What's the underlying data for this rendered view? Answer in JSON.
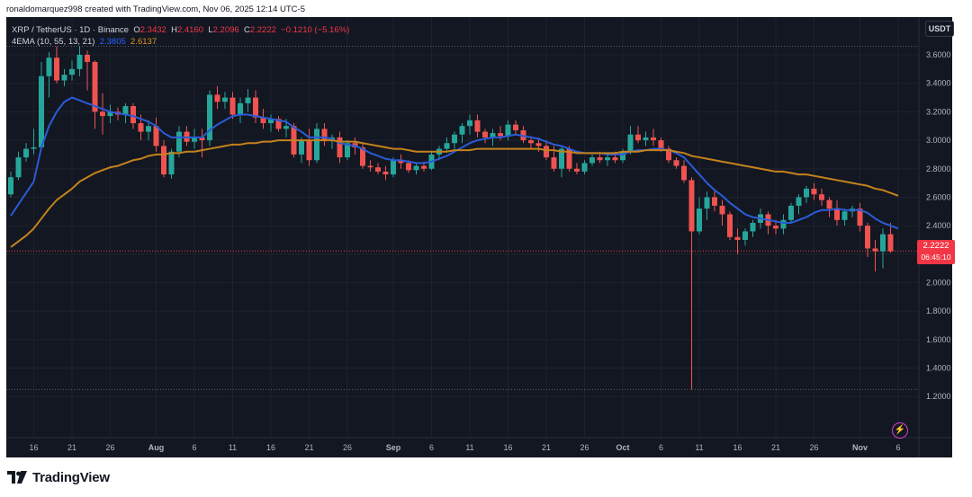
{
  "header": {
    "text": "ronaldomarquez998 created with TradingView.com, Nov 06, 2025 12:14 UTC-5"
  },
  "legend": {
    "symbol": "XRP / TetherUS · 1D · Binance",
    "open_label": "O",
    "open": "2.3432",
    "high_label": "H",
    "high": "2.4160",
    "low_label": "L",
    "low": "2.2096",
    "close_label": "C",
    "close": "2.2222",
    "change": "−0.1210 (−5.16%)",
    "ema_label": "4EMA (10, 55, 13, 21)",
    "ema_fast": "2.3805",
    "ema_slow": "2.6137"
  },
  "currency_label": "USDT",
  "price_tag": {
    "price": "2.2222",
    "countdown": "06:45:10"
  },
  "brand": {
    "name": "TradingView"
  },
  "colors": {
    "background": "#131722",
    "up": "#26a69a",
    "down": "#ef5350",
    "ema_fast": "#2a5bd7",
    "ema_slow": "#c5821c",
    "price_tag": "#f23645"
  },
  "chart_data": {
    "type": "candlestick",
    "symbol": "XRP / TetherUS",
    "interval": "1D",
    "exchange": "Binance",
    "y_ticks": [
      "3.6000",
      "3.4000",
      "3.2000",
      "3.0000",
      "2.8000",
      "2.6000",
      "2.4000",
      "2.2000",
      "2.0000",
      "1.8000",
      "1.6000",
      "1.4000",
      "1.2000"
    ],
    "ylim": [
      1.05,
      3.72
    ],
    "x_ticks": [
      {
        "label": "16",
        "i": 3
      },
      {
        "label": "21",
        "i": 8
      },
      {
        "label": "26",
        "i": 13
      },
      {
        "label": "Aug",
        "i": 19
      },
      {
        "label": "6",
        "i": 24
      },
      {
        "label": "11",
        "i": 29
      },
      {
        "label": "16",
        "i": 34
      },
      {
        "label": "21",
        "i": 39
      },
      {
        "label": "26",
        "i": 44
      },
      {
        "label": "Sep",
        "i": 50
      },
      {
        "label": "6",
        "i": 55
      },
      {
        "label": "11",
        "i": 60
      },
      {
        "label": "16",
        "i": 65
      },
      {
        "label": "21",
        "i": 70
      },
      {
        "label": "26",
        "i": 75
      },
      {
        "label": "Oct",
        "i": 80
      },
      {
        "label": "6",
        "i": 85
      },
      {
        "label": "11",
        "i": 90
      },
      {
        "label": "16",
        "i": 95
      },
      {
        "label": "21",
        "i": 100
      },
      {
        "label": "26",
        "i": 105
      },
      {
        "label": "Nov",
        "i": 111
      },
      {
        "label": "6",
        "i": 116
      }
    ],
    "reference_lines": [
      {
        "price": 3.66,
        "style": "dotted"
      },
      {
        "price": 1.25,
        "style": "dotted"
      },
      {
        "price": 2.2222,
        "style": "dotted-red"
      }
    ],
    "candles": [
      [
        2.62,
        2.78,
        2.6,
        2.74
      ],
      [
        2.74,
        2.92,
        2.72,
        2.88
      ],
      [
        2.88,
        2.98,
        2.85,
        2.94
      ],
      [
        2.94,
        3.08,
        2.9,
        2.95
      ],
      [
        2.95,
        3.55,
        2.93,
        3.45
      ],
      [
        3.45,
        3.62,
        3.3,
        3.58
      ],
      [
        3.58,
        3.66,
        3.4,
        3.42
      ],
      [
        3.42,
        3.5,
        3.38,
        3.46
      ],
      [
        3.46,
        3.56,
        3.42,
        3.5
      ],
      [
        3.5,
        3.66,
        3.45,
        3.6
      ],
      [
        3.6,
        3.63,
        3.35,
        3.55
      ],
      [
        3.55,
        3.56,
        3.08,
        3.2
      ],
      [
        3.2,
        3.33,
        3.04,
        3.17
      ],
      [
        3.17,
        3.25,
        3.12,
        3.2
      ],
      [
        3.2,
        3.23,
        3.14,
        3.18
      ],
      [
        3.18,
        3.26,
        3.12,
        3.24
      ],
      [
        3.24,
        3.26,
        3.08,
        3.12
      ],
      [
        3.12,
        3.18,
        3.0,
        3.06
      ],
      [
        3.06,
        3.14,
        3.0,
        3.1
      ],
      [
        3.1,
        3.16,
        2.92,
        2.96
      ],
      [
        2.96,
        3.0,
        2.74,
        2.76
      ],
      [
        2.76,
        2.94,
        2.73,
        2.92
      ],
      [
        2.92,
        3.1,
        2.88,
        3.06
      ],
      [
        3.06,
        3.1,
        2.96,
        2.99
      ],
      [
        2.99,
        3.08,
        2.94,
        3.02
      ],
      [
        3.02,
        3.08,
        2.88,
        3.0
      ],
      [
        3.0,
        3.35,
        2.96,
        3.32
      ],
      [
        3.32,
        3.38,
        3.22,
        3.27
      ],
      [
        3.27,
        3.34,
        3.22,
        3.3
      ],
      [
        3.3,
        3.34,
        3.15,
        3.18
      ],
      [
        3.18,
        3.3,
        3.12,
        3.26
      ],
      [
        3.26,
        3.36,
        3.2,
        3.3
      ],
      [
        3.3,
        3.35,
        3.12,
        3.16
      ],
      [
        3.16,
        3.22,
        3.08,
        3.12
      ],
      [
        3.12,
        3.18,
        3.06,
        3.15
      ],
      [
        3.15,
        3.17,
        3.06,
        3.08
      ],
      [
        3.08,
        3.15,
        3.02,
        3.1
      ],
      [
        3.1,
        3.12,
        2.88,
        2.9
      ],
      [
        2.9,
        3.02,
        2.84,
        3.0
      ],
      [
        3.0,
        3.08,
        2.82,
        2.86
      ],
      [
        2.86,
        3.12,
        2.84,
        3.08
      ],
      [
        3.08,
        3.12,
        2.96,
        3.0
      ],
      [
        3.0,
        3.04,
        2.94,
        3.02
      ],
      [
        3.02,
        3.06,
        2.84,
        2.88
      ],
      [
        2.88,
        3.0,
        2.86,
        2.98
      ],
      [
        2.98,
        3.02,
        2.9,
        2.95
      ],
      [
        2.95,
        2.98,
        2.8,
        2.82
      ],
      [
        2.82,
        2.86,
        2.78,
        2.81
      ],
      [
        2.81,
        2.84,
        2.76,
        2.78
      ],
      [
        2.78,
        2.82,
        2.72,
        2.76
      ],
      [
        2.76,
        2.88,
        2.74,
        2.86
      ],
      [
        2.86,
        2.9,
        2.8,
        2.84
      ],
      [
        2.84,
        2.86,
        2.77,
        2.79
      ],
      [
        2.79,
        2.84,
        2.76,
        2.82
      ],
      [
        2.82,
        2.85,
        2.78,
        2.8
      ],
      [
        2.8,
        2.92,
        2.79,
        2.9
      ],
      [
        2.9,
        2.96,
        2.86,
        2.94
      ],
      [
        2.94,
        3.02,
        2.92,
        2.98
      ],
      [
        2.98,
        3.06,
        2.94,
        3.04
      ],
      [
        3.04,
        3.12,
        2.98,
        3.1
      ],
      [
        3.1,
        3.18,
        3.04,
        3.14
      ],
      [
        3.14,
        3.18,
        3.02,
        3.06
      ],
      [
        3.06,
        3.08,
        2.98,
        3.02
      ],
      [
        3.02,
        3.08,
        2.96,
        3.05
      ],
      [
        3.05,
        3.1,
        3.0,
        3.03
      ],
      [
        3.03,
        3.14,
        3.0,
        3.11
      ],
      [
        3.11,
        3.14,
        3.04,
        3.07
      ],
      [
        3.07,
        3.1,
        2.98,
        3.0
      ],
      [
        3.0,
        3.03,
        2.94,
        2.98
      ],
      [
        2.98,
        3.02,
        2.92,
        2.96
      ],
      [
        2.96,
        3.0,
        2.86,
        2.88
      ],
      [
        2.88,
        2.96,
        2.78,
        2.8
      ],
      [
        2.8,
        2.96,
        2.74,
        2.94
      ],
      [
        2.94,
        2.96,
        2.78,
        2.8
      ],
      [
        2.8,
        2.84,
        2.76,
        2.78
      ],
      [
        2.78,
        2.86,
        2.76,
        2.84
      ],
      [
        2.84,
        2.9,
        2.82,
        2.88
      ],
      [
        2.88,
        2.92,
        2.84,
        2.86
      ],
      [
        2.86,
        2.9,
        2.82,
        2.88
      ],
      [
        2.88,
        2.92,
        2.84,
        2.86
      ],
      [
        2.86,
        2.94,
        2.84,
        2.92
      ],
      [
        2.92,
        3.1,
        2.9,
        3.04
      ],
      [
        3.04,
        3.1,
        2.98,
        3.0
      ],
      [
        3.0,
        3.06,
        2.96,
        3.02
      ],
      [
        3.02,
        3.08,
        2.96,
        3.0
      ],
      [
        3.0,
        3.02,
        2.92,
        2.94
      ],
      [
        2.94,
        2.96,
        2.84,
        2.86
      ],
      [
        2.86,
        2.88,
        2.8,
        2.82
      ],
      [
        2.82,
        2.86,
        2.7,
        2.72
      ],
      [
        2.72,
        2.74,
        1.25,
        2.36
      ],
      [
        2.36,
        2.6,
        2.34,
        2.52
      ],
      [
        2.52,
        2.64,
        2.44,
        2.6
      ],
      [
        2.6,
        2.66,
        2.5,
        2.54
      ],
      [
        2.54,
        2.58,
        2.4,
        2.48
      ],
      [
        2.48,
        2.5,
        2.3,
        2.32
      ],
      [
        2.32,
        2.38,
        2.2,
        2.3
      ],
      [
        2.3,
        2.38,
        2.26,
        2.36
      ],
      [
        2.36,
        2.44,
        2.32,
        2.42
      ],
      [
        2.42,
        2.52,
        2.38,
        2.48
      ],
      [
        2.48,
        2.5,
        2.34,
        2.4
      ],
      [
        2.4,
        2.44,
        2.34,
        2.38
      ],
      [
        2.38,
        2.48,
        2.34,
        2.44
      ],
      [
        2.44,
        2.56,
        2.42,
        2.54
      ],
      [
        2.54,
        2.62,
        2.48,
        2.6
      ],
      [
        2.6,
        2.68,
        2.56,
        2.66
      ],
      [
        2.66,
        2.7,
        2.58,
        2.62
      ],
      [
        2.62,
        2.66,
        2.54,
        2.58
      ],
      [
        2.58,
        2.6,
        2.46,
        2.52
      ],
      [
        2.52,
        2.58,
        2.4,
        2.44
      ],
      [
        2.44,
        2.52,
        2.4,
        2.5
      ],
      [
        2.5,
        2.54,
        2.46,
        2.52
      ],
      [
        2.52,
        2.56,
        2.36,
        2.4
      ],
      [
        2.4,
        2.42,
        2.18,
        2.24
      ],
      [
        2.24,
        2.3,
        2.08,
        2.22
      ],
      [
        2.22,
        2.38,
        2.1,
        2.34
      ],
      [
        2.34,
        2.42,
        2.21,
        2.22
      ]
    ],
    "series": [
      {
        "name": "EMA 10",
        "color": "#2a5bd7",
        "values": [
          2.47,
          2.55,
          2.63,
          2.71,
          2.95,
          3.1,
          3.2,
          3.27,
          3.3,
          3.28,
          3.26,
          3.24,
          3.22,
          3.2,
          3.19,
          3.18,
          3.17,
          3.15,
          3.13,
          3.1,
          3.05,
          3.02,
          3.02,
          3.02,
          3.02,
          3.02,
          3.07,
          3.11,
          3.14,
          3.17,
          3.18,
          3.18,
          3.17,
          3.16,
          3.15,
          3.14,
          3.13,
          3.09,
          3.06,
          3.02,
          3.02,
          3.02,
          3.01,
          2.98,
          2.97,
          2.96,
          2.94,
          2.91,
          2.89,
          2.87,
          2.86,
          2.86,
          2.85,
          2.84,
          2.84,
          2.85,
          2.87,
          2.89,
          2.92,
          2.95,
          2.98,
          3.0,
          3.01,
          3.02,
          3.02,
          3.03,
          3.04,
          3.03,
          3.02,
          3.01,
          2.99,
          2.97,
          2.96,
          2.94,
          2.92,
          2.91,
          2.91,
          2.91,
          2.9,
          2.9,
          2.9,
          2.92,
          2.93,
          2.93,
          2.94,
          2.94,
          2.93,
          2.91,
          2.88,
          2.82,
          2.76,
          2.7,
          2.65,
          2.61,
          2.56,
          2.52,
          2.48,
          2.46,
          2.45,
          2.44,
          2.43,
          2.42,
          2.42,
          2.44,
          2.46,
          2.49,
          2.51,
          2.51,
          2.52,
          2.51,
          2.51,
          2.51,
          2.49,
          2.45,
          2.42,
          2.4,
          2.38
        ]
      },
      {
        "name": "EMA 55",
        "color": "#c5821c",
        "values": [
          2.25,
          2.29,
          2.33,
          2.38,
          2.45,
          2.52,
          2.58,
          2.62,
          2.66,
          2.71,
          2.74,
          2.77,
          2.79,
          2.81,
          2.82,
          2.84,
          2.86,
          2.87,
          2.89,
          2.9,
          2.9,
          2.91,
          2.91,
          2.92,
          2.92,
          2.93,
          2.94,
          2.95,
          2.96,
          2.97,
          2.97,
          2.98,
          2.98,
          2.99,
          2.99,
          3.0,
          3.0,
          3.0,
          3.0,
          3.0,
          3.0,
          3.0,
          3.0,
          2.99,
          2.99,
          2.99,
          2.98,
          2.97,
          2.96,
          2.95,
          2.94,
          2.94,
          2.93,
          2.92,
          2.92,
          2.92,
          2.92,
          2.92,
          2.93,
          2.93,
          2.93,
          2.94,
          2.94,
          2.94,
          2.94,
          2.94,
          2.94,
          2.94,
          2.94,
          2.94,
          2.93,
          2.93,
          2.92,
          2.92,
          2.91,
          2.91,
          2.91,
          2.91,
          2.91,
          2.91,
          2.92,
          2.92,
          2.92,
          2.93,
          2.93,
          2.93,
          2.93,
          2.92,
          2.91,
          2.89,
          2.88,
          2.87,
          2.86,
          2.85,
          2.84,
          2.83,
          2.82,
          2.81,
          2.8,
          2.79,
          2.78,
          2.78,
          2.77,
          2.76,
          2.76,
          2.75,
          2.74,
          2.73,
          2.72,
          2.71,
          2.7,
          2.69,
          2.68,
          2.66,
          2.65,
          2.63,
          2.61
        ]
      }
    ]
  }
}
